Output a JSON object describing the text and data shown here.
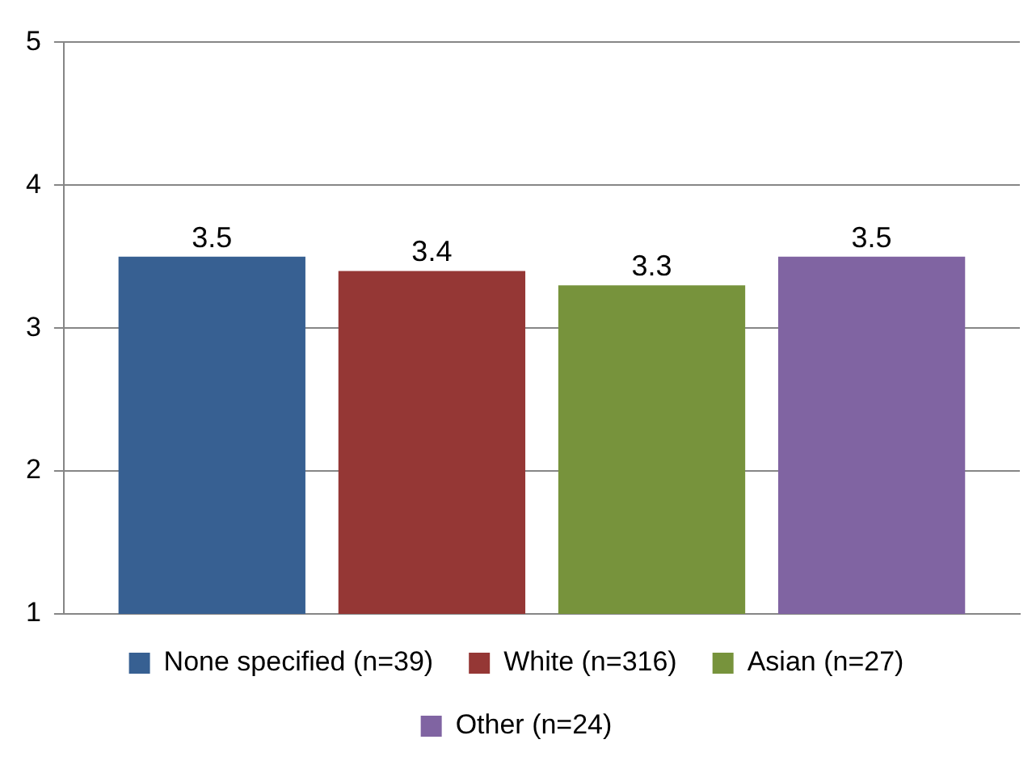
{
  "chart_data": {
    "type": "bar",
    "categories": [
      null
    ],
    "series": [
      {
        "name": "None specified (n=39)",
        "color": "#376092",
        "values": [
          3.5
        ]
      },
      {
        "name": "White (n=316)",
        "color": "#953735",
        "values": [
          3.4
        ]
      },
      {
        "name": "Asian (n=27)",
        "color": "#77933c",
        "values": [
          3.3
        ]
      },
      {
        "name": "Other (n=24)",
        "color": "#8064a2",
        "values": [
          3.5
        ]
      }
    ],
    "ylim": [
      1,
      5
    ],
    "yticks": [
      1,
      2,
      3,
      4,
      5
    ],
    "grid": "y",
    "legend": "bottom",
    "data_labels": true
  }
}
